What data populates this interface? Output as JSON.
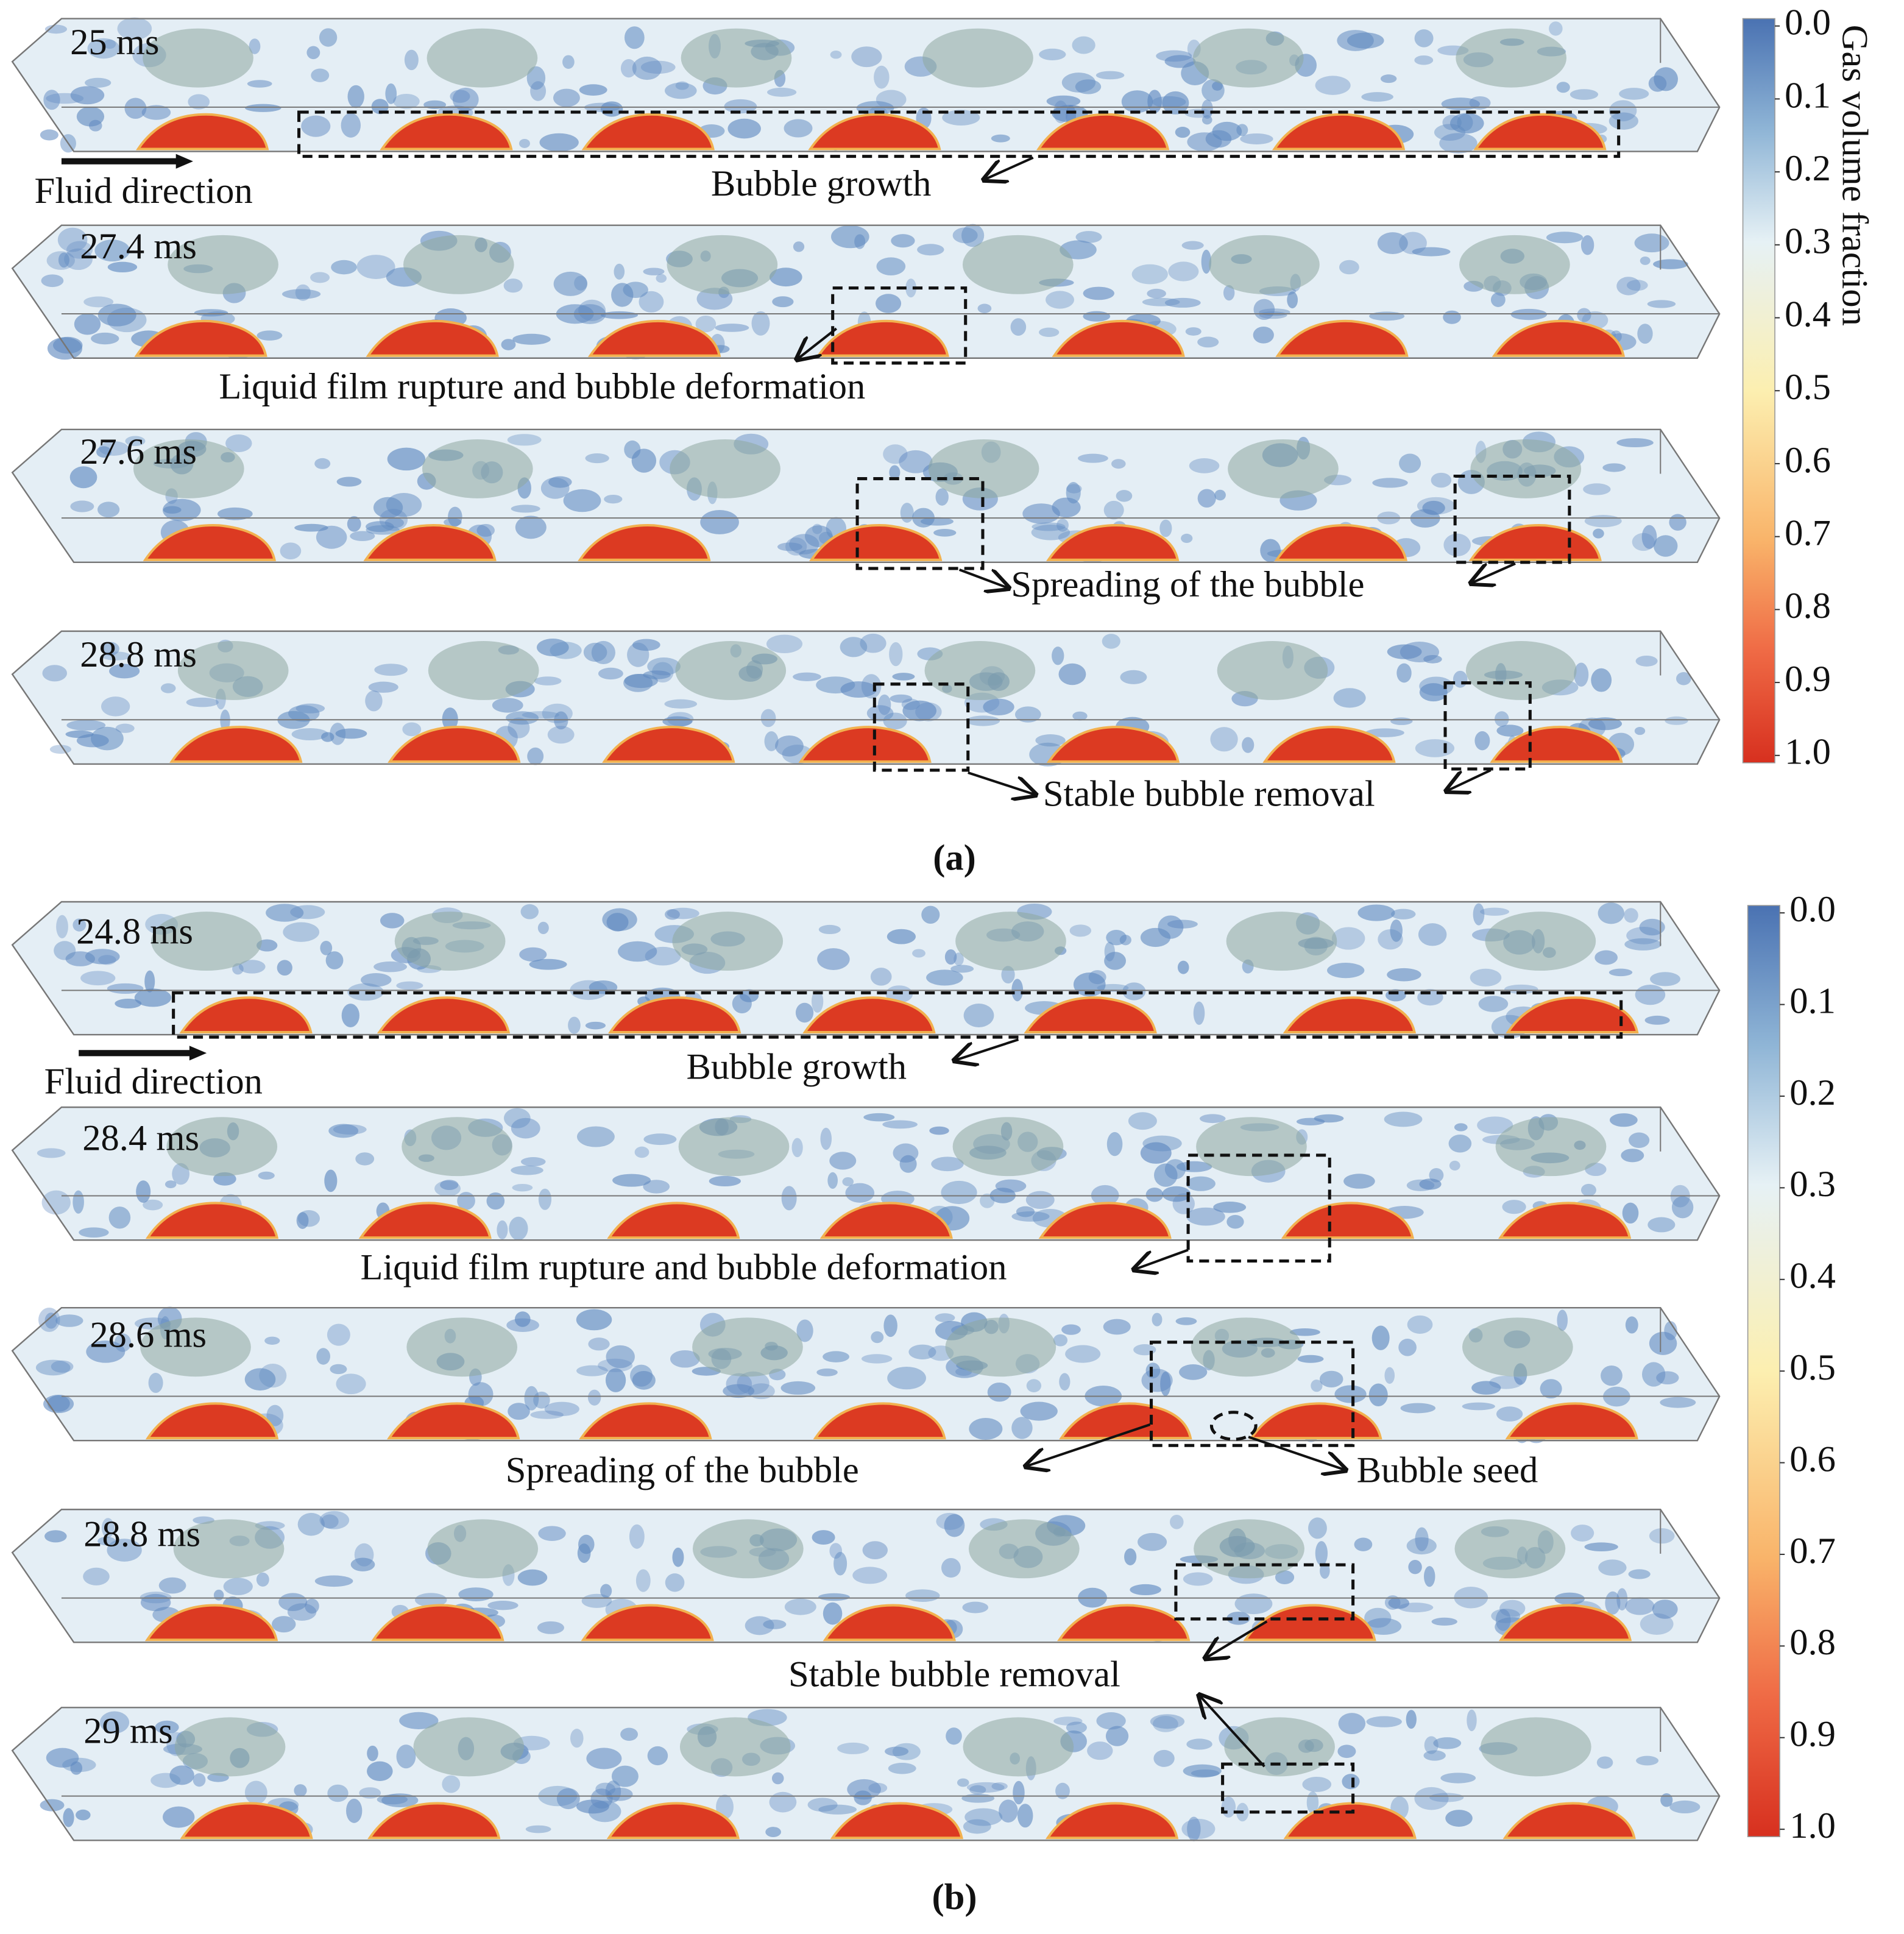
{
  "panels": [
    {
      "caption": "(a)",
      "frames": [
        "25 ms",
        "27.4 ms",
        "27.6 ms",
        "28.8 ms"
      ],
      "fluid_direction": "Fluid direction",
      "annotations": [
        "Bubble growth",
        "Liquid film rupture and bubble deformation",
        "Spreading  of the bubble",
        "Stable bubble removal"
      ],
      "colorbar": {
        "title": "Gas volume fraction",
        "ticks": [
          {
            "value": 0,
            "label": "0.0"
          },
          0.1,
          0.2,
          0.3,
          0.4,
          0.5,
          0.6,
          0.7,
          0.8,
          0.9,
          {
            "value": 1,
            "label": "1.0"
          }
        ]
      }
    },
    {
      "caption": "(b)",
      "frames": [
        "24.8 ms",
        "28.4 ms",
        "28.6 ms",
        "28.8 ms",
        "29 ms"
      ],
      "fluid_direction": "Fluid direction",
      "annotations": [
        "Bubble growth",
        "Liquid film rupture and bubble deformation",
        "Spreading of the bubble",
        "Bubble seed",
        "Stable bubble removal"
      ],
      "colorbar": {
        "ticks": [
          {
            "value": 0,
            "label": "0.0"
          },
          0.1,
          0.2,
          0.3,
          0.4,
          0.5,
          0.6,
          0.7,
          0.8,
          0.9,
          {
            "value": 1,
            "label": "1.0"
          }
        ]
      }
    }
  ]
}
